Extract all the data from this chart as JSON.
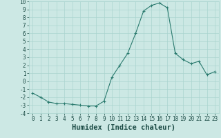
{
  "xlabel": "Humidex (Indice chaleur)",
  "x_values": [
    0,
    1,
    2,
    3,
    4,
    5,
    6,
    7,
    8,
    9,
    10,
    11,
    12,
    13,
    14,
    15,
    16,
    17,
    18,
    19,
    20,
    21,
    22,
    23
  ],
  "y_values": [
    -1.5,
    -2.0,
    -2.6,
    -2.8,
    -2.8,
    -2.9,
    -3.0,
    -3.1,
    -3.1,
    -2.5,
    0.5,
    2.0,
    3.5,
    6.0,
    8.8,
    9.5,
    9.8,
    9.2,
    3.5,
    2.7,
    2.2,
    2.5,
    0.8,
    1.2
  ],
  "line_color": "#2a7a6e",
  "marker": "+",
  "bg_color": "#cce8e4",
  "grid_color": "#aad4cf",
  "ylim": [
    -4,
    10
  ],
  "xlim": [
    -0.5,
    23.5
  ],
  "yticks": [
    -4,
    -3,
    -2,
    -1,
    0,
    1,
    2,
    3,
    4,
    5,
    6,
    7,
    8,
    9,
    10
  ],
  "xticks": [
    0,
    1,
    2,
    3,
    4,
    5,
    6,
    7,
    8,
    9,
    10,
    11,
    12,
    13,
    14,
    15,
    16,
    17,
    18,
    19,
    20,
    21,
    22,
    23
  ],
  "tick_fontsize": 5.5,
  "xlabel_fontsize": 7.5,
  "markersize": 3,
  "linewidth": 0.8
}
